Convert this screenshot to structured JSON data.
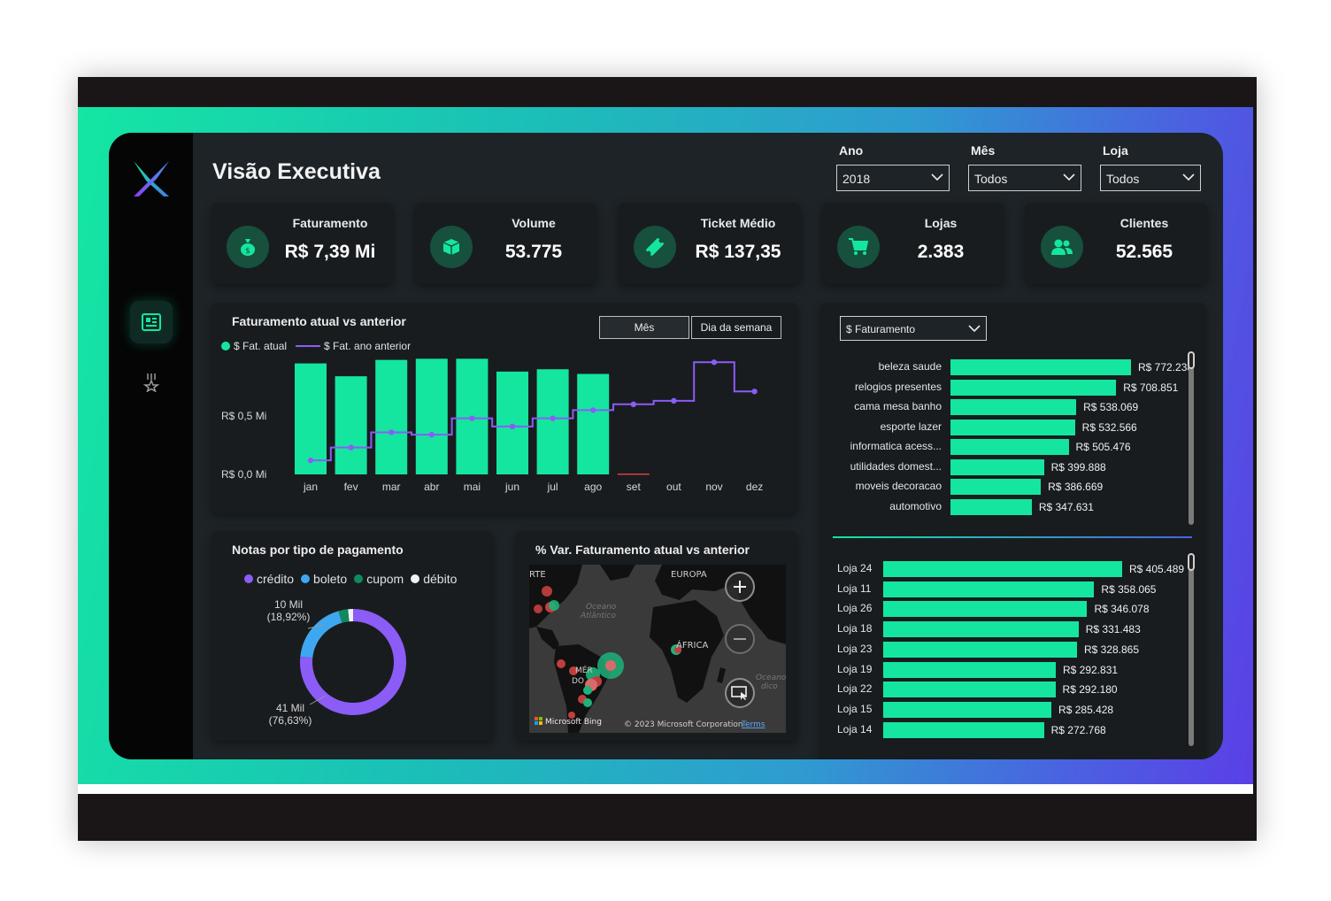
{
  "header": {
    "title": "Visão Executiva"
  },
  "filters": [
    {
      "label": "Ano",
      "value": "2018"
    },
    {
      "label": "Mês",
      "value": "Todos"
    },
    {
      "label": "Loja",
      "value": "Todos"
    }
  ],
  "kpis": [
    {
      "label": "Faturamento",
      "value": "R$ 7,39 Mi",
      "icon": "money-bag-icon"
    },
    {
      "label": "Volume",
      "value": "53.775",
      "icon": "box-icon"
    },
    {
      "label": "Ticket Médio",
      "value": "R$ 137,35",
      "icon": "ticket-icon"
    },
    {
      "label": "Lojas",
      "value": "2.383",
      "icon": "cart-icon"
    },
    {
      "label": "Clientes",
      "value": "52.565",
      "icon": "users-icon"
    }
  ],
  "colors": {
    "accent": "#14e69f",
    "purple": "#8b5cf6",
    "panel": "#1d2327",
    "card": "#181c1f"
  },
  "revenue_chart": {
    "title": "Faturamento atual vs anterior",
    "legend": [
      "$ Fat. atual",
      "$ Fat. ano anterior"
    ],
    "toggle": [
      "Mês",
      "Dia da semana"
    ],
    "y_ticks": [
      "R$ 0,5 Mi",
      "R$ 0,0 Mi"
    ]
  },
  "payment_chart": {
    "title": "Notas por tipo de pagamento",
    "legend": [
      "crédito",
      "boleto",
      "cupom",
      "débito"
    ],
    "label_small": "10 Mil",
    "label_small_pct": "(18,92%)",
    "label_big": "41 Mil",
    "label_big_pct": "(76,63%)"
  },
  "map": {
    "title": "% Var. Faturamento atual vs anterior",
    "labels": {
      "europa": "EUROPA",
      "africa": "ÁFRICA",
      "ocean": "Oceano",
      "ocean2": "Atlântico",
      "rte": "RTE",
      "mer": "MÉR",
      "do": "DO",
      "ocean_right": "Oceano",
      "ocean_right2": "dico"
    },
    "bing": "Microsoft Bing",
    "copyright": "© 2023 Microsoft Corporation",
    "terms": "Terms"
  },
  "category_panel": {
    "measure": "$ Faturamento"
  },
  "chart_data": [
    {
      "type": "bar",
      "title": "Faturamento atual vs anterior",
      "categories": [
        "jan",
        "fev",
        "mar",
        "abr",
        "mai",
        "jun",
        "jul",
        "ago",
        "set",
        "out",
        "nov",
        "dez"
      ],
      "series": [
        {
          "name": "$ Fat. atual",
          "type": "bar",
          "values": [
            0.95,
            0.84,
            0.98,
            0.99,
            0.99,
            0.88,
            0.9,
            0.86,
            0.005,
            null,
            null,
            null
          ]
        },
        {
          "name": "$ Fat. ano anterior",
          "type": "line",
          "values": [
            0.12,
            0.23,
            0.36,
            0.34,
            0.48,
            0.41,
            0.48,
            0.55,
            0.6,
            0.63,
            0.96,
            0.71
          ]
        }
      ],
      "ylim": [
        0,
        1.0
      ],
      "unit": "R$ Mi"
    },
    {
      "type": "pie",
      "title": "Notas por tipo de pagamento",
      "categories": [
        "crédito",
        "boleto",
        "cupom",
        "débito"
      ],
      "values": [
        76.63,
        18.92,
        2.9,
        1.55
      ],
      "colors": [
        "#8b5cf6",
        "#3ea7f0",
        "#0f8a5e",
        "#f2f2f2"
      ]
    },
    {
      "type": "bar",
      "orientation": "horizontal",
      "categories": [
        "beleza saude",
        "relogios presentes",
        "cama mesa banho",
        "esporte lazer",
        "informatica acess...",
        "utilidades domest...",
        "moveis decoracao",
        "automotivo"
      ],
      "values": [
        772238,
        708851,
        538069,
        532566,
        505476,
        399888,
        386669,
        347631
      ],
      "labels": [
        "R$ 772.238",
        "R$ 708.851",
        "R$ 538.069",
        "R$ 532.566",
        "R$ 505.476",
        "R$ 399.888",
        "R$ 386.669",
        "R$ 347.631"
      ]
    },
    {
      "type": "bar",
      "orientation": "horizontal",
      "categories": [
        "Loja 24",
        "Loja 11",
        "Loja 26",
        "Loja 18",
        "Loja 23",
        "Loja 19",
        "Loja 22",
        "Loja 15",
        "Loja 14"
      ],
      "values": [
        405489,
        358065,
        346078,
        331483,
        328865,
        292831,
        292180,
        285428,
        272768
      ],
      "labels": [
        "R$ 405.489",
        "R$ 358.065",
        "R$ 346.078",
        "R$ 331.483",
        "R$ 328.865",
        "R$ 292.831",
        "R$ 292.180",
        "R$ 285.428",
        "R$ 272.768"
      ]
    }
  ]
}
